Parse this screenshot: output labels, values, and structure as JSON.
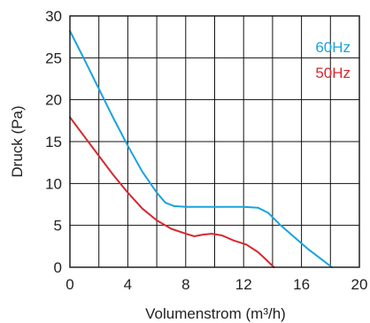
{
  "chart_data": {
    "type": "line",
    "title": "",
    "xlabel": "Volumenstrom (m³/h)",
    "ylabel": "Druck (Pa)",
    "xlim": [
      0,
      20
    ],
    "ylim": [
      0,
      30
    ],
    "x_ticks": [
      0,
      4,
      8,
      12,
      16,
      20
    ],
    "y_ticks": [
      0,
      5,
      10,
      15,
      20,
      25,
      30
    ],
    "x_grid": [
      2,
      4,
      6,
      8,
      10,
      12,
      14,
      16,
      18,
      20
    ],
    "y_grid": [
      5,
      10,
      15,
      20,
      25,
      30
    ],
    "grid": true,
    "legend_position": "top-right",
    "series": [
      {
        "name": "60Hz",
        "color": "#1aa3dc",
        "points": [
          [
            0,
            28.2
          ],
          [
            1,
            24.8
          ],
          [
            2,
            21.3
          ],
          [
            3,
            17.8
          ],
          [
            4,
            14.5
          ],
          [
            5,
            11.4
          ],
          [
            6,
            8.9
          ],
          [
            6.6,
            7.7
          ],
          [
            7.2,
            7.3
          ],
          [
            8,
            7.2
          ],
          [
            10,
            7.2
          ],
          [
            12,
            7.2
          ],
          [
            13,
            7.1
          ],
          [
            13.7,
            6.5
          ],
          [
            14.5,
            5.1
          ],
          [
            15.5,
            3.6
          ],
          [
            16.5,
            2.1
          ],
          [
            17.5,
            0.8
          ],
          [
            18.1,
            0
          ]
        ]
      },
      {
        "name": "50Hz",
        "color": "#d7282f",
        "points": [
          [
            0,
            17.9
          ],
          [
            1,
            15.6
          ],
          [
            2,
            13.3
          ],
          [
            3,
            11.0
          ],
          [
            4,
            8.9
          ],
          [
            5,
            7.0
          ],
          [
            6,
            5.6
          ],
          [
            7,
            4.6
          ],
          [
            8,
            4.0
          ],
          [
            8.6,
            3.7
          ],
          [
            9.2,
            3.9
          ],
          [
            9.8,
            4.0
          ],
          [
            10.5,
            3.8
          ],
          [
            11.3,
            3.2
          ],
          [
            12.2,
            2.7
          ],
          [
            13,
            1.8
          ],
          [
            13.5,
            1.0
          ],
          [
            14.1,
            0
          ]
        ]
      }
    ]
  }
}
